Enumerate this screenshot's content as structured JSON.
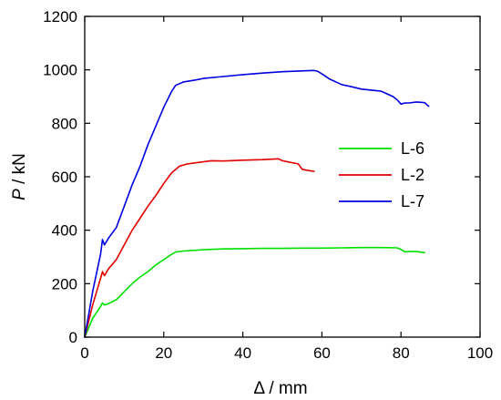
{
  "chart_data": {
    "type": "line",
    "title": "",
    "xlabel": "Δ / mm",
    "ylabel_italic": "P",
    "ylabel_rest": " / kN",
    "xlim": [
      0,
      100
    ],
    "ylim": [
      0,
      1200
    ],
    "xticks": [
      0,
      20,
      40,
      60,
      80,
      100
    ],
    "yticks": [
      0,
      200,
      400,
      600,
      800,
      1000,
      1200
    ],
    "grid": false,
    "legend_position": "right",
    "series": [
      {
        "name": "L-6",
        "color": "#00e000",
        "x": [
          0,
          2,
          4,
          4.5,
          5,
          6,
          8,
          10,
          12,
          14,
          16,
          18,
          20,
          22,
          23,
          25,
          30,
          35,
          40,
          45,
          50,
          55,
          60,
          65,
          70,
          75,
          79,
          80,
          81,
          82,
          84,
          86
        ],
        "y": [
          0,
          70,
          115,
          128,
          120,
          125,
          140,
          170,
          200,
          225,
          245,
          270,
          290,
          310,
          318,
          322,
          327,
          330,
          331,
          332,
          332,
          333,
          333,
          334,
          335,
          335,
          334,
          328,
          319,
          320,
          320,
          316
        ]
      },
      {
        "name": "L-2",
        "color": "#e00000",
        "x": [
          0,
          2,
          4,
          4.5,
          5,
          6,
          8,
          10,
          12,
          14,
          16,
          18,
          20,
          22,
          24,
          26,
          28,
          30,
          32,
          35,
          40,
          45,
          49,
          50,
          52,
          54,
          55,
          56,
          58
        ],
        "y": [
          0,
          120,
          220,
          245,
          230,
          255,
          290,
          345,
          400,
          445,
          490,
          530,
          575,
          615,
          640,
          648,
          652,
          656,
          660,
          659,
          662,
          664,
          667,
          660,
          654,
          648,
          628,
          625,
          620
        ]
      },
      {
        "name": "L-7",
        "color": "#0000e0",
        "x": [
          0,
          2,
          4,
          4.5,
          5,
          6,
          8,
          10,
          12,
          14,
          16,
          18,
          20,
          22,
          23,
          25,
          28,
          30,
          35,
          40,
          45,
          50,
          55,
          58,
          59,
          60,
          62,
          65,
          68,
          70,
          75,
          78,
          79,
          80,
          81,
          82,
          84,
          86,
          87
        ],
        "y": [
          0,
          170,
          310,
          365,
          345,
          370,
          410,
          490,
          570,
          640,
          720,
          790,
          860,
          920,
          942,
          955,
          962,
          968,
          975,
          982,
          988,
          993,
          996,
          998,
          994,
          985,
          965,
          945,
          935,
          928,
          920,
          900,
          888,
          872,
          876,
          876,
          880,
          877,
          864
        ]
      }
    ]
  }
}
